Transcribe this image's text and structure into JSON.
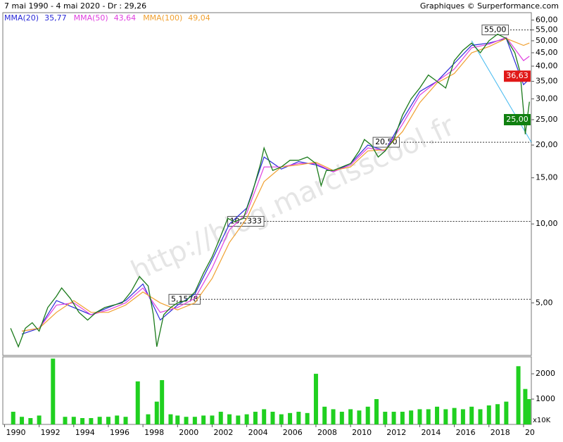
{
  "chart_data": [
    {
      "type": "line",
      "title": "7 mai 1990 - 4 mai 2020 - Dr : 29,26",
      "source": "Graphiques © Surperformance.com",
      "watermark": "http://blog.marcisscool.fr",
      "log_scale": true,
      "xlim": [
        1989.9,
        2020.45
      ],
      "ylim": [
        3.15,
        64
      ],
      "xticks": [
        1990,
        1992,
        1994,
        1996,
        1998,
        2000,
        2002,
        2004,
        2006,
        2008,
        2010,
        2012,
        2014,
        2016,
        2018,
        {
          "value": 2020,
          "label": "20"
        }
      ],
      "yticks": [
        {
          "value": 60,
          "label": "60,00"
        },
        {
          "value": 55,
          "label": "55,00"
        },
        {
          "value": 50,
          "label": "50,00"
        },
        {
          "value": 45,
          "label": "45,00"
        },
        {
          "value": 40,
          "label": "40,00"
        },
        {
          "value": 35,
          "label": "35,00"
        },
        {
          "value": 30,
          "label": "30,00"
        },
        {
          "value": 25,
          "label": "25,00"
        },
        {
          "value": 20,
          "label": "20,00"
        },
        {
          "value": 15,
          "label": "15,00"
        },
        {
          "value": 10,
          "label": "10,00"
        },
        {
          "value": 5,
          "label": "5,00"
        }
      ],
      "price": {
        "color": "#1a7a1a",
        "x": [
          1990.35,
          1990.8,
          1991.2,
          1991.6,
          1992.0,
          1992.5,
          1993.0,
          1993.3,
          1993.8,
          1994.3,
          1994.8,
          1995.3,
          1995.8,
          1996.3,
          1996.8,
          1997.3,
          1997.8,
          1998.3,
          1998.6,
          1998.8,
          1999.2,
          1999.6,
          2000.0,
          2000.5,
          2001.0,
          2001.5,
          2002.0,
          2002.5,
          2002.9,
          2003.3,
          2003.8,
          2004.3,
          2004.8,
          2005.0,
          2005.5,
          2006.0,
          2006.5,
          2007.0,
          2007.5,
          2008.0,
          2008.3,
          2008.6,
          2009.0,
          2009.5,
          2010.0,
          2010.5,
          2010.8,
          2011.2,
          2011.6,
          2012.0,
          2012.5,
          2013.0,
          2013.5,
          2014.0,
          2014.5,
          2015.0,
          2015.5,
          2016.0,
          2016.5,
          2017.0,
          2017.5,
          2018.0,
          2018.5,
          2019.0,
          2019.5,
          2019.8,
          2020.0,
          2020.1,
          2020.34
        ],
        "values": [
          4.0,
          3.4,
          4.0,
          4.2,
          3.9,
          4.8,
          5.3,
          5.7,
          5.2,
          4.6,
          4.3,
          4.6,
          4.8,
          4.9,
          5.0,
          5.5,
          6.3,
          5.8,
          4.5,
          3.4,
          4.5,
          4.8,
          5.0,
          5.1,
          5.5,
          6.5,
          7.5,
          9.0,
          10.5,
          10.2,
          10.5,
          13,
          17,
          19.5,
          16,
          16.5,
          17.5,
          17.5,
          18,
          17,
          14,
          16,
          16,
          16.5,
          17,
          19,
          21,
          20,
          18,
          19,
          21,
          26,
          30,
          33,
          37,
          35,
          33,
          42,
          46,
          49,
          45,
          50,
          53,
          51,
          45,
          38,
          27,
          22,
          29.26
        ]
      },
      "series": [
        {
          "name": "MMA(20)",
          "legend_value": "35,77",
          "color": "#2a2ad8",
          "x": [
            1991,
            1992,
            1993,
            1994,
            1995,
            1996,
            1997,
            1998,
            1999,
            2000,
            2001,
            2002,
            2003,
            2004,
            2005,
            2006,
            2007,
            2008,
            2009,
            2010,
            2011,
            2012,
            2013,
            2014,
            2015,
            2016,
            2017,
            2018,
            2019,
            2020,
            2020.34
          ],
          "values": [
            3.8,
            4.0,
            5.1,
            4.8,
            4.5,
            4.8,
            5.1,
            5.9,
            4.3,
            4.9,
            5.4,
            7.3,
            10.0,
            11.5,
            18,
            16.2,
            17.3,
            16.8,
            15.8,
            17,
            20,
            19,
            25,
            32,
            35,
            41,
            48,
            49,
            51,
            34,
            35.77
          ]
        },
        {
          "name": "MMA(50)",
          "legend_value": "43,64",
          "color": "#e040e0",
          "x": [
            1991,
            1992,
            1993,
            1994,
            1995,
            1996,
            1997,
            1998,
            1999,
            2000,
            2001,
            2002,
            2003,
            2004,
            2005,
            2006,
            2007,
            2008,
            2009,
            2010,
            2011,
            2012,
            2013,
            2014,
            2015,
            2016,
            2017,
            2018,
            2019,
            2020,
            2020.34
          ],
          "values": [
            3.9,
            4.0,
            4.9,
            5.0,
            4.5,
            4.7,
            5.0,
            5.7,
            4.6,
            4.8,
            5.2,
            6.8,
            9.5,
            11,
            16.5,
            16.5,
            17,
            17,
            15.8,
            16.8,
            19.5,
            19,
            24,
            31,
            35,
            39,
            47,
            48.5,
            51.5,
            42,
            43.64
          ]
        },
        {
          "name": "MMA(100)",
          "legend_value": "49,04",
          "color": "#f0a030",
          "x": [
            1991,
            1992,
            1993,
            1994,
            1995,
            1996,
            1997,
            1998,
            1999,
            2000,
            2001,
            2002,
            2003,
            2004,
            2005,
            2006,
            2007,
            2008,
            2009,
            2010,
            2011,
            2012,
            2013,
            2014,
            2015,
            2016,
            2017,
            2018,
            2019,
            2020,
            2020.34
          ],
          "values": [
            3.9,
            4.0,
            4.6,
            5.1,
            4.6,
            4.6,
            4.9,
            5.5,
            5.0,
            4.7,
            5.0,
            6.2,
            8.5,
            10.5,
            14.5,
            16.5,
            16.8,
            17.2,
            16,
            16.5,
            19,
            19.2,
            22.5,
            29,
            34.5,
            37.5,
            45,
            47.5,
            51,
            48,
            49.04
          ]
        }
      ],
      "levels": [
        {
          "x": 2017.6,
          "value": 55,
          "label": "55,00"
        },
        {
          "x": 2011.3,
          "value": 20.5,
          "label": "20,50"
        },
        {
          "x": 2002.9,
          "value": 10.2333,
          "label": "10,2333"
        },
        {
          "x": 1999.5,
          "value": 5.1578,
          "label": "5,1578"
        }
      ],
      "markers": [
        {
          "value": 36.63,
          "label": "36,63",
          "color": "#e01818"
        },
        {
          "value": 25,
          "label": "25,00",
          "color": "#108010"
        }
      ],
      "trendline": {
        "color": "#40b8f0",
        "x": [
          2017.0,
          2020.45
        ],
        "values": [
          50,
          20.5
        ]
      }
    },
    {
      "type": "bar",
      "unit": "x10K",
      "color": "#20d020",
      "ylim": [
        0,
        2670
      ],
      "yticks": [
        1000,
        2000
      ],
      "x": [
        1990.5,
        1991,
        1991.5,
        1992,
        1992.8,
        1993.5,
        1994,
        1994.5,
        1995,
        1995.5,
        1996,
        1996.5,
        1997,
        1997.7,
        1998.3,
        1998.8,
        1999.1,
        1999.6,
        2000,
        2000.5,
        2001,
        2001.5,
        2002,
        2002.5,
        2003,
        2003.5,
        2004,
        2004.5,
        2005,
        2005.5,
        2006,
        2006.5,
        2007,
        2007.5,
        2008.0,
        2008.5,
        2009,
        2009.5,
        2010,
        2010.5,
        2011,
        2011.5,
        2012,
        2012.5,
        2013,
        2013.5,
        2014,
        2014.5,
        2015,
        2015.5,
        2016,
        2016.5,
        2017,
        2017.5,
        2018,
        2018.5,
        2019,
        2019.7,
        2020.1,
        2020.3
      ],
      "values": [
        500,
        300,
        250,
        350,
        2600,
        300,
        300,
        250,
        250,
        300,
        300,
        350,
        300,
        1700,
        400,
        900,
        1750,
        400,
        350,
        300,
        300,
        350,
        350,
        500,
        400,
        350,
        400,
        500,
        600,
        500,
        400,
        450,
        500,
        450,
        2000,
        700,
        600,
        500,
        600,
        550,
        700,
        1000,
        500,
        500,
        500,
        550,
        600,
        600,
        700,
        600,
        650,
        600,
        700,
        600,
        750,
        800,
        900,
        2300,
        1400,
        1000
      ]
    }
  ]
}
